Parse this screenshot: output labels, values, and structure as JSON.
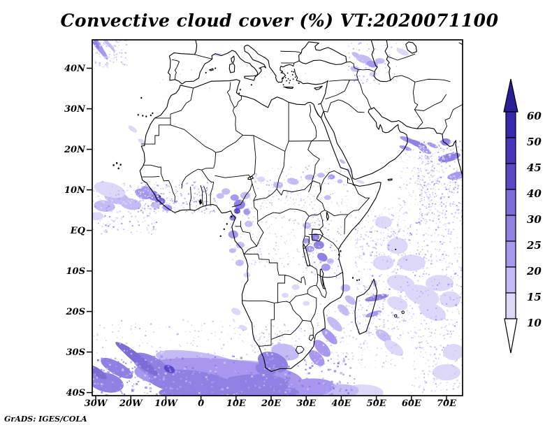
{
  "chart": {
    "title": "Convective cloud cover (%) VT:2020071100",
    "attribution": "GrADS: IGES/COLA"
  },
  "chart_data": {
    "type": "heatmap",
    "title": "Convective cloud cover (%) VT:2020071100",
    "variable": "Convective cloud cover",
    "units": "%",
    "valid_time": "2020071100",
    "region": "Africa and surrounding oceans",
    "x_ticks": [
      "30W",
      "20W",
      "10W",
      "0",
      "10E",
      "20E",
      "30E",
      "40E",
      "50E",
      "60E",
      "70E"
    ],
    "x_tick_lons": [
      -30,
      -20,
      -10,
      0,
      10,
      20,
      30,
      40,
      50,
      60,
      70
    ],
    "y_ticks": [
      "40N",
      "30N",
      "20N",
      "10N",
      "EQ",
      "10S",
      "20S",
      "30S",
      "40S"
    ],
    "y_tick_lats": [
      40,
      30,
      20,
      10,
      0,
      -10,
      -20,
      -30,
      -40
    ],
    "lon_range": [
      -31,
      74.6
    ],
    "lat_range": [
      -40.8,
      47.2
    ],
    "grid": false,
    "legend_position": "right-colorbar",
    "colorbar": {
      "levels": [
        10,
        15,
        20,
        25,
        30,
        40,
        45,
        50,
        60
      ],
      "colors": [
        "#ffffff",
        "#ddd8f8",
        "#c4bbf4",
        "#a797ef",
        "#8f80e2",
        "#7b6cd6",
        "#5a49c6",
        "#4736bb",
        "#3629ac",
        "#2a1f96"
      ]
    },
    "clouds": {
      "blob_format": "[lon,lat,rx_deg,ry_deg,rot_deg,color_index]",
      "blobs": [
        [
          -29.5,
          45.8,
          3.2,
          0.8,
          -52,
          3
        ],
        [
          -28.2,
          44.2,
          2.6,
          0.6,
          -52,
          3
        ],
        [
          -30.4,
          46.6,
          2.2,
          0.6,
          -52,
          4
        ],
        [
          -27,
          46.6,
          1.8,
          0.5,
          -52,
          2
        ],
        [
          -25.5,
          45.2,
          1.5,
          0.4,
          -50,
          2
        ],
        [
          46.5,
          42.2,
          2.4,
          1,
          -15,
          2
        ],
        [
          48.8,
          41,
          1.6,
          0.8,
          -10,
          3
        ],
        [
          51,
          41.8,
          1.4,
          0.7,
          0,
          2
        ],
        [
          44.3,
          43.2,
          1.4,
          0.6,
          -25,
          2
        ],
        [
          57.5,
          44,
          1.8,
          0.7,
          -20,
          1
        ],
        [
          44,
          39.8,
          1.4,
          0.7,
          -10,
          2
        ],
        [
          49,
          38.5,
          1.1,
          0.6,
          0,
          1
        ],
        [
          5,
          43.3,
          1.2,
          0.4,
          0,
          1
        ],
        [
          59,
          22.3,
          2.4,
          0.6,
          -18,
          3
        ],
        [
          61.8,
          21.3,
          2.8,
          0.7,
          -20,
          4
        ],
        [
          58.3,
          20.3,
          1.8,
          0.5,
          -15,
          3
        ],
        [
          63.8,
          19.8,
          2,
          0.6,
          -22,
          3
        ],
        [
          66,
          21,
          1.6,
          0.5,
          -20,
          3
        ],
        [
          70.8,
          18,
          1,
          3.2,
          -78,
          4
        ],
        [
          73,
          13.5,
          0.9,
          2.8,
          -80,
          3
        ],
        [
          69.8,
          21.8,
          1.4,
          0.9,
          0,
          4
        ],
        [
          40.3,
          17,
          0.9,
          0.4,
          -30,
          2
        ],
        [
          42.3,
          14.8,
          1,
          0.4,
          -25,
          1
        ],
        [
          45.5,
          12,
          1.2,
          0.4,
          -15,
          1
        ],
        [
          -27.5,
          6,
          3,
          1.4,
          -5,
          2
        ],
        [
          -24,
          8,
          3.6,
          1.5,
          -10,
          2
        ],
        [
          -29.8,
          3.5,
          2,
          1,
          0,
          1
        ],
        [
          -26,
          10,
          4.5,
          1.8,
          -12,
          1
        ],
        [
          -20,
          6.5,
          3,
          1.4,
          -8,
          2
        ],
        [
          -16.5,
          9,
          2.4,
          1.2,
          -15,
          3
        ],
        [
          -13.6,
          8.6,
          2,
          1.2,
          -20,
          4
        ],
        [
          -11.6,
          7.2,
          1.4,
          0.9,
          0,
          5
        ],
        [
          -15.2,
          9.8,
          1.9,
          1,
          -20,
          3
        ],
        [
          -11.9,
          8.3,
          0.5,
          0.4,
          0,
          7
        ],
        [
          -9.6,
          5.6,
          1.4,
          0.8,
          -10,
          3
        ],
        [
          -13,
          6.2,
          1.3,
          0.8,
          0,
          2
        ],
        [
          11,
          6.4,
          1.6,
          1.2,
          0,
          4
        ],
        [
          10.3,
          4.8,
          0.9,
          0.7,
          0,
          6
        ],
        [
          9.6,
          8.1,
          1.2,
          0.8,
          0,
          3
        ],
        [
          12.6,
          8.6,
          1.4,
          0.9,
          0,
          2
        ],
        [
          7.1,
          9.6,
          1.2,
          0.8,
          0,
          2
        ],
        [
          13.1,
          4.6,
          1,
          0.8,
          0,
          3
        ],
        [
          9.1,
          3.1,
          1,
          0.7,
          0,
          4
        ],
        [
          5.5,
          8.5,
          1.1,
          0.7,
          0,
          2
        ],
        [
          9.2,
          -1,
          1.4,
          1,
          0,
          3
        ],
        [
          11.2,
          -3.6,
          1.2,
          0.8,
          0,
          2
        ],
        [
          13.6,
          1.6,
          1.1,
          0.8,
          0,
          2
        ],
        [
          22,
          11.2,
          1.4,
          0.8,
          0,
          2
        ],
        [
          26.2,
          12.1,
          1.7,
          0.8,
          -10,
          2
        ],
        [
          31,
          13.1,
          1.4,
          0.7,
          0,
          2
        ],
        [
          17.2,
          12.6,
          1.1,
          0.7,
          0,
          1
        ],
        [
          34.2,
          13.6,
          1.1,
          0.6,
          0,
          2
        ],
        [
          37.2,
          13.2,
          1,
          0.6,
          0,
          3
        ],
        [
          39.6,
          12.1,
          0.8,
          0.5,
          0,
          2
        ],
        [
          36.1,
          8.1,
          1,
          0.6,
          0,
          2
        ],
        [
          32.6,
          -1.6,
          1.2,
          0.9,
          0,
          4
        ],
        [
          33.6,
          -3.6,
          1.5,
          1,
          0,
          4
        ],
        [
          31.1,
          -4.6,
          1.2,
          0.8,
          0,
          3
        ],
        [
          34.6,
          -6.6,
          1.5,
          1,
          -20,
          4
        ],
        [
          35.6,
          -9.1,
          1.3,
          0.9,
          0,
          3
        ],
        [
          30.1,
          -2.6,
          1,
          0.7,
          0,
          3
        ],
        [
          36.9,
          -7.6,
          1,
          0.7,
          0,
          2
        ],
        [
          30.2,
          1.2,
          1.2,
          0.8,
          0,
          2
        ],
        [
          41.2,
          -14.2,
          1.4,
          0.9,
          0,
          2
        ],
        [
          42.6,
          -17.2,
          1.7,
          0.9,
          -30,
          2
        ],
        [
          40.6,
          -19.6,
          1.9,
          1,
          -35,
          2
        ],
        [
          38.1,
          -23.1,
          2.6,
          1.1,
          -38,
          2
        ],
        [
          36.6,
          -26.1,
          2.8,
          1.1,
          -40,
          3
        ],
        [
          34.6,
          -29.1,
          2.8,
          1.4,
          -40,
          3
        ],
        [
          33,
          -31.5,
          2.6,
          1.4,
          -38,
          3
        ],
        [
          50.1,
          -16.6,
          0.7,
          3.4,
          -80,
          4
        ],
        [
          49.2,
          -20.6,
          0.6,
          2.4,
          -75,
          3
        ],
        [
          49.6,
          -13.1,
          0.6,
          0.8,
          0,
          2
        ],
        [
          57,
          -13,
          4,
          2,
          -10,
          1
        ],
        [
          63,
          -16,
          5,
          2.4,
          -15,
          1
        ],
        [
          68,
          -13,
          4,
          2,
          0,
          1
        ],
        [
          60,
          -8,
          4,
          2,
          0,
          1
        ],
        [
          66,
          -20,
          4,
          2,
          -20,
          1
        ],
        [
          71,
          -17,
          3,
          2,
          0,
          1
        ],
        [
          52,
          -8,
          3,
          1.8,
          0,
          1
        ],
        [
          56,
          -18,
          3,
          1.6,
          -15,
          1
        ],
        [
          52,
          2,
          2.4,
          1.5,
          0,
          1
        ],
        [
          56,
          -3.8,
          3,
          2,
          0,
          1
        ],
        [
          11,
          -8,
          1.2,
          0.8,
          0,
          2
        ],
        [
          13.1,
          -11,
          1,
          0.6,
          0,
          1
        ],
        [
          9,
          -5,
          1,
          0.6,
          0,
          2
        ],
        [
          10,
          -20,
          1.4,
          0.8,
          -20,
          1
        ],
        [
          12,
          -24,
          1.2,
          0.6,
          -20,
          1
        ],
        [
          27,
          -14,
          1.1,
          0.7,
          0,
          1
        ],
        [
          30,
          -18,
          1,
          0.6,
          0,
          1
        ],
        [
          24,
          -16,
          1,
          0.6,
          0,
          1
        ],
        [
          52,
          -26,
          2.4,
          1.2,
          -30,
          2
        ],
        [
          55,
          -29,
          3,
          1.4,
          -30,
          1
        ],
        [
          72,
          -30,
          3,
          2,
          0,
          1
        ],
        [
          70,
          -35,
          4,
          2,
          0,
          1
        ],
        [
          -17,
          22,
          1,
          0.5,
          -20,
          1
        ],
        [
          -19.5,
          25,
          1.4,
          0.6,
          -30,
          1
        ],
        [
          0,
          -32.5,
          13,
          2.4,
          -8,
          2
        ],
        [
          12,
          -34,
          8,
          2,
          0,
          2
        ],
        [
          24,
          -30,
          4,
          2,
          -10,
          2
        ],
        [
          46,
          -40,
          6,
          2,
          0,
          1
        ],
        [
          38,
          -40,
          7,
          2,
          5,
          2
        ],
        [
          30,
          -39,
          8,
          2.4,
          5,
          3
        ],
        [
          5,
          -36,
          24,
          4.4,
          -3,
          3
        ],
        [
          -24,
          -34,
          5,
          1.6,
          -25,
          4
        ],
        [
          -3,
          -37.5,
          12,
          3,
          -5,
          4
        ],
        [
          14,
          -38.5,
          11,
          3,
          3,
          4
        ],
        [
          8,
          -40,
          20,
          2.6,
          0,
          4
        ],
        [
          -14,
          -33.5,
          6,
          2.4,
          -25,
          4
        ],
        [
          -27,
          -37.5,
          5,
          2.4,
          -10,
          4
        ],
        [
          20.5,
          -32.5,
          4.4,
          2.4,
          -15,
          4
        ],
        [
          18.5,
          -34.3,
          3,
          1.5,
          -10,
          4
        ],
        [
          -18,
          -31.8,
          7,
          1.2,
          -35,
          5
        ],
        [
          -21,
          -29.8,
          4,
          0.8,
          -33,
          5
        ],
        [
          -29.5,
          -35,
          3,
          1,
          -30,
          5
        ],
        [
          -9,
          -34.2,
          1.6,
          0.9,
          -20,
          6
        ]
      ],
      "speckle_format": "[lon0,lat0,lon1,lat1,count,size_min_deg,size_max_deg,[color_indices]]",
      "speckle_fields": [
        [
          44,
          -26,
          74.5,
          2,
          650,
          0.18,
          0.5,
          [
            1,
            1,
            1,
            2,
            2,
            3
          ]
        ],
        [
          62,
          2,
          74.5,
          22,
          400,
          0.18,
          0.5,
          [
            1,
            1,
            2,
            2,
            3
          ]
        ],
        [
          56,
          6,
          66,
          20,
          120,
          0.18,
          0.45,
          [
            1,
            2
          ]
        ],
        [
          -31,
          -1,
          -12,
          12,
          240,
          0.18,
          0.5,
          [
            1,
            1,
            2,
            3
          ]
        ],
        [
          -17,
          4,
          4,
          12,
          190,
          0.18,
          0.5,
          [
            1,
            2,
            2,
            3
          ]
        ],
        [
          8,
          -9,
          33,
          9,
          240,
          0.18,
          0.45,
          [
            1,
            1,
            2
          ]
        ],
        [
          15,
          6,
          42,
          16,
          170,
          0.18,
          0.45,
          [
            1,
            1,
            2
          ]
        ],
        [
          -31,
          -41,
          44,
          -31,
          400,
          0.25,
          0.7,
          [
            2,
            3,
            3,
            4
          ]
        ],
        [
          -31,
          -31,
          20,
          -22,
          130,
          0.2,
          0.5,
          [
            1,
            1,
            2
          ]
        ],
        [
          33,
          -34,
          58,
          -18,
          190,
          0.18,
          0.5,
          [
            1,
            1,
            2
          ]
        ],
        [
          42,
          36,
          56,
          46.8,
          100,
          0.18,
          0.45,
          [
            1,
            2
          ]
        ],
        [
          -31,
          40,
          -21,
          47,
          100,
          0.18,
          0.5,
          [
            1,
            2
          ]
        ],
        [
          -12,
          33,
          30,
          44,
          55,
          0.15,
          0.4,
          [
            1
          ]
        ],
        [
          14,
          -31,
          33,
          -23,
          100,
          0.18,
          0.45,
          [
            1,
            2
          ]
        ],
        [
          60,
          -40,
          74.5,
          -26,
          150,
          0.2,
          0.5,
          [
            1,
            1,
            2
          ]
        ],
        [
          29,
          -12,
          40,
          5,
          130,
          0.18,
          0.45,
          [
            1,
            2,
            3
          ]
        ],
        [
          44,
          -8,
          60,
          6,
          150,
          0.18,
          0.45,
          [
            1,
            1,
            2
          ]
        ]
      ]
    }
  }
}
